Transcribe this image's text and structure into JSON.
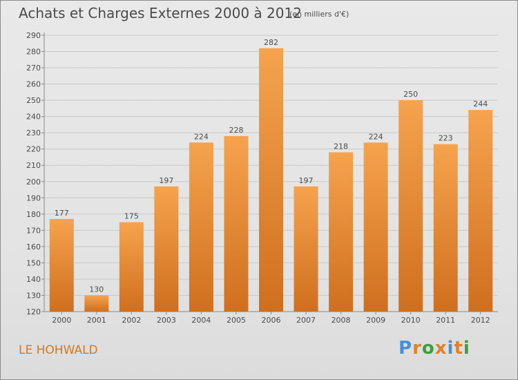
{
  "title": "Achats et Charges Externes 2000 à 2012",
  "subtitle": "(en milliers d'€)",
  "commune": "LE HOHWALD",
  "logo": {
    "text": "Proxiti",
    "letters": [
      "P",
      "r",
      "o",
      "x",
      "i",
      "t",
      "i"
    ],
    "letter_colors": [
      "#4a8fd6",
      "#e0812a",
      "#3aa13a",
      "#e0812a",
      "#4a8fd6",
      "#e0812a",
      "#3aa13a"
    ]
  },
  "colors": {
    "bar_top": "#f6a34e",
    "bar_bottom": "#cf6f1e",
    "grid": "#c8c8c8",
    "text": "#4a4a4a",
    "commune": "#d4761f"
  },
  "chart_data": {
    "type": "bar",
    "title": "Achats et Charges Externes 2000 à 2012",
    "subtitle": "(en milliers d'€)",
    "xlabel": "",
    "ylabel": "",
    "categories": [
      "2000",
      "2001",
      "2002",
      "2003",
      "2004",
      "2005",
      "2006",
      "2007",
      "2008",
      "2009",
      "2010",
      "2011",
      "2012"
    ],
    "values": [
      177,
      130,
      175,
      197,
      224,
      228,
      282,
      197,
      218,
      224,
      250,
      223,
      244
    ],
    "ylim": [
      120,
      290
    ],
    "yticks": [
      120,
      130,
      140,
      150,
      160,
      170,
      180,
      190,
      200,
      210,
      220,
      230,
      240,
      250,
      260,
      270,
      280,
      290
    ],
    "grid": true,
    "legend": "none"
  }
}
